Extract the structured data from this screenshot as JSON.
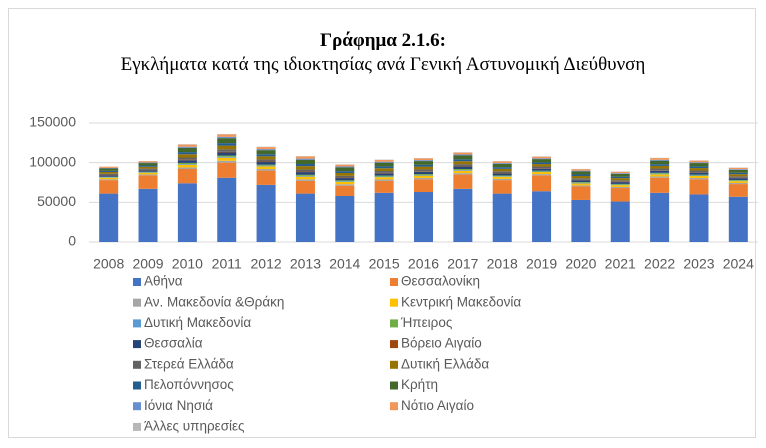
{
  "chart_data": {
    "type": "stacked_bar",
    "title": "Γράφημα 2.1.6:",
    "subtitle": "Εγκλήματα κατά της ιδιοκτησίας ανά Γενική Αστυνομική Διεύθυνση",
    "categories": [
      "2008",
      "2009",
      "2010",
      "2011",
      "2012",
      "2013",
      "2014",
      "2015",
      "2016",
      "2017",
      "2018",
      "2019",
      "2020",
      "2021",
      "2022",
      "2023",
      "2024"
    ],
    "ylim": [
      0,
      150000
    ],
    "yticks": [
      0,
      50000,
      100000,
      150000
    ],
    "series": [
      {
        "name": "Αθήνα",
        "color": "#4472c4",
        "values": [
          61000,
          67000,
          74000,
          81000,
          72000,
          61000,
          58000,
          62000,
          63000,
          67000,
          61000,
          64000,
          53000,
          51000,
          62000,
          60000,
          57000
        ]
      },
      {
        "name": "Θεσσαλονίκη",
        "color": "#ed7d31",
        "values": [
          17000,
          17000,
          18000,
          19000,
          18000,
          16000,
          13000,
          15000,
          16000,
          18000,
          17000,
          20000,
          17000,
          17000,
          19000,
          19000,
          16000
        ]
      },
      {
        "name": "Αν. Μακεδονία &Θράκη",
        "color": "#a5a5a5",
        "values": [
          1100,
          1200,
          2000,
          2400,
          2000,
          2000,
          1800,
          1800,
          1800,
          1800,
          1600,
          1600,
          1400,
          1400,
          1600,
          1600,
          1400
        ]
      },
      {
        "name": "Κεντρική Μακεδονία",
        "color": "#ffc000",
        "values": [
          1900,
          2000,
          3400,
          3900,
          3300,
          3400,
          2900,
          2900,
          2900,
          3100,
          2600,
          2600,
          2400,
          2300,
          2700,
          2600,
          2300
        ]
      },
      {
        "name": "Δυτική Μακεδονία",
        "color": "#5b9bd5",
        "values": [
          500,
          500,
          900,
          1100,
          900,
          900,
          800,
          800,
          800,
          900,
          700,
          700,
          700,
          600,
          800,
          700,
          600
        ]
      },
      {
        "name": "Ήπειρος",
        "color": "#70ad47",
        "values": [
          700,
          800,
          1400,
          1600,
          1300,
          1400,
          1200,
          1200,
          1200,
          1200,
          1000,
          1000,
          1000,
          900,
          1100,
          1000,
          900
        ]
      },
      {
        "name": "Θεσσαλία",
        "color": "#264478",
        "values": [
          1900,
          2000,
          3400,
          3900,
          3300,
          3400,
          2900,
          2900,
          2900,
          3100,
          2600,
          2600,
          2400,
          2300,
          2700,
          2600,
          2300
        ]
      },
      {
        "name": "Βόρειο Αιγαίο",
        "color": "#9e480e",
        "values": [
          400,
          400,
          700,
          800,
          700,
          700,
          600,
          600,
          600,
          600,
          500,
          500,
          500,
          500,
          500,
          500,
          500
        ]
      },
      {
        "name": "Στερεά Ελλάδα",
        "color": "#636363",
        "values": [
          1500,
          1600,
          2700,
          3100,
          2600,
          2700,
          2300,
          2300,
          2300,
          2400,
          2100,
          2100,
          1900,
          1800,
          2200,
          2100,
          1800
        ]
      },
      {
        "name": "Δυτική Ελλάδα",
        "color": "#997300",
        "values": [
          2200,
          2300,
          4100,
          4700,
          3900,
          4100,
          3500,
          3500,
          3500,
          3700,
          3100,
          3100,
          2900,
          2700,
          3300,
          3100,
          2700
        ]
      },
      {
        "name": "Πελοπόννησος",
        "color": "#255e91",
        "values": [
          1500,
          1600,
          2700,
          3100,
          2600,
          2700,
          2300,
          2300,
          2300,
          2400,
          2100,
          2100,
          1900,
          1800,
          2200,
          2100,
          1800
        ]
      },
      {
        "name": "Κρήτη",
        "color": "#43682b",
        "values": [
          3000,
          3100,
          5400,
          6300,
          5200,
          5400,
          4700,
          4700,
          4700,
          4900,
          4200,
          4200,
          3800,
          3600,
          4400,
          4200,
          3600
        ]
      },
      {
        "name": "Ιόνια Νησιά",
        "color": "#698ed0",
        "values": [
          700,
          800,
          1400,
          1600,
          1300,
          1400,
          1200,
          1200,
          1200,
          1200,
          1000,
          1000,
          1000,
          900,
          1100,
          1000,
          900
        ]
      },
      {
        "name": "Νότιο Αιγαίο",
        "color": "#f1975a",
        "values": [
          1500,
          1600,
          2700,
          3100,
          2600,
          2700,
          2300,
          2300,
          2300,
          2400,
          2100,
          2100,
          1900,
          1800,
          2200,
          2100,
          1800
        ]
      },
      {
        "name": "Άλλες υπηρεσίες",
        "color": "#b7b7b7",
        "values": [
          200,
          200,
          400,
          500,
          400,
          400,
          400,
          400,
          400,
          400,
          300,
          300,
          300,
          300,
          300,
          300,
          300
        ]
      }
    ]
  }
}
